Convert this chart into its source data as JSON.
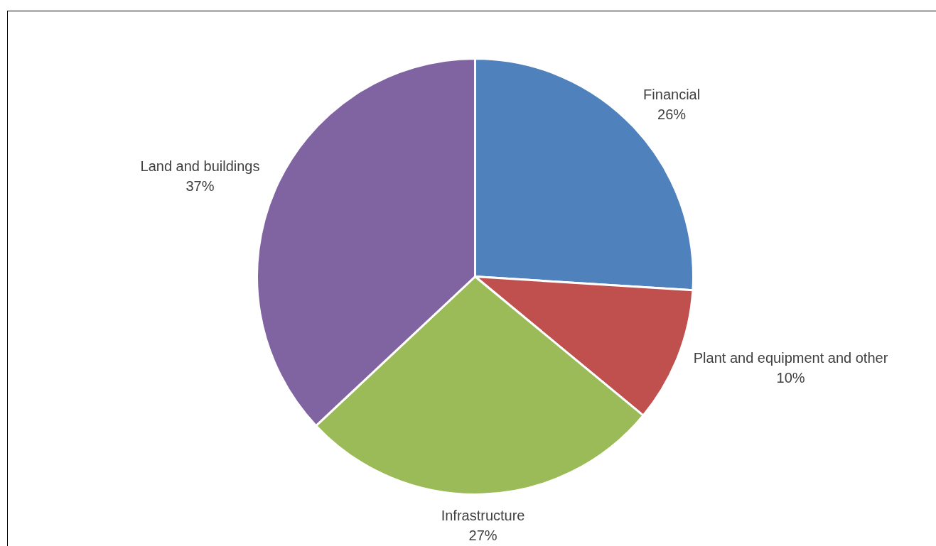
{
  "chart_data": {
    "type": "pie",
    "categories": [
      "Financial",
      "Plant and equipment and other",
      "Infrastructure",
      "Land and buildings"
    ],
    "values": [
      26,
      10,
      27,
      37
    ],
    "colors": [
      "#4f81bd",
      "#c0504d",
      "#9bbb59",
      "#8064a2"
    ],
    "value_labels": [
      "26%",
      "10%",
      "27%",
      "37%"
    ],
    "legend": false
  }
}
